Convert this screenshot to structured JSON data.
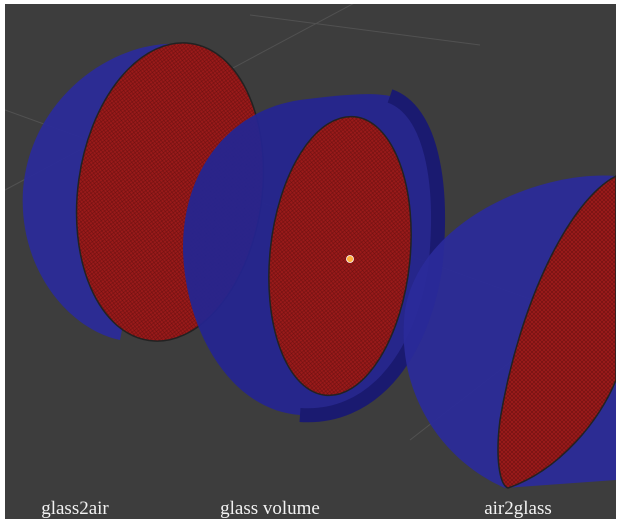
{
  "labels": [
    "glass2air",
    "glass volume",
    "air2glass"
  ]
}
